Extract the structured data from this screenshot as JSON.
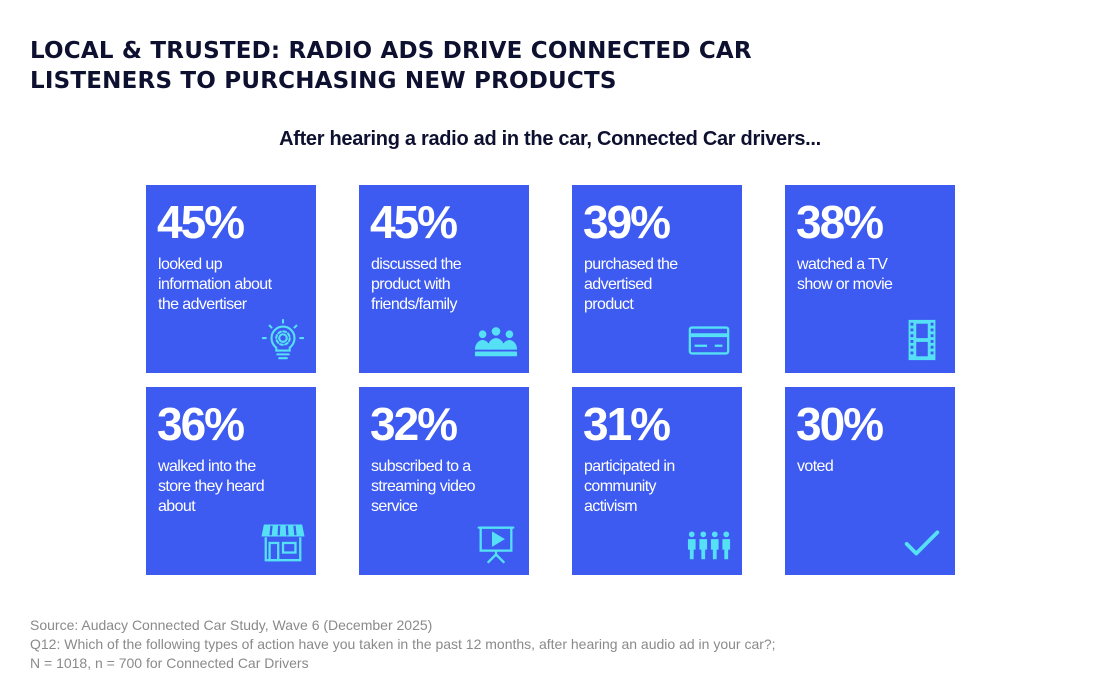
{
  "title_lines": [
    "LOCAL & TRUSTED: RADIO ADS DRIVE CONNECTED CAR",
    "LISTENERS TO PURCHASING NEW PRODUCTS"
  ],
  "subtitle": "After hearing a radio ad in the car, Connected Car drivers...",
  "colors": {
    "card": "#3d5af1",
    "icon": "#55e0f5",
    "title": "#0e1030",
    "source": "#8a8a8a"
  },
  "chart_data": {
    "type": "table",
    "title": "LOCAL & TRUSTED: RADIO ADS DRIVE CONNECTED CAR LISTENERS TO PURCHASING NEW PRODUCTS",
    "subtitle": "After hearing a radio ad in the car, Connected Car drivers...",
    "items": [
      {
        "value": "45%",
        "lines": [
          "looked up",
          "information about",
          "the advertiser"
        ],
        "icon": "lightbulb-icon"
      },
      {
        "value": "45%",
        "lines": [
          "discussed the",
          "product with",
          "friends/family"
        ],
        "icon": "group-icon"
      },
      {
        "value": "39%",
        "lines": [
          "purchased the",
          "advertised",
          "product"
        ],
        "icon": "credit-card-icon"
      },
      {
        "value": "38%",
        "lines": [
          "watched a TV",
          "show or movie"
        ],
        "icon": "film-strip-icon"
      },
      {
        "value": "36%",
        "lines": [
          "walked into the",
          "store they heard",
          "about"
        ],
        "icon": "storefront-icon"
      },
      {
        "value": "32%",
        "lines": [
          "subscribed to a",
          "streaming video",
          "service"
        ],
        "icon": "video-screen-icon"
      },
      {
        "value": "31%",
        "lines": [
          "participated in",
          "community",
          "activism"
        ],
        "icon": "people-row-icon"
      },
      {
        "value": "30%",
        "lines": [
          "voted"
        ],
        "icon": "checkmark-icon"
      }
    ]
  },
  "source_lines": [
    "Source: Audacy Connected Car Study, Wave 6 (December 2025)",
    "Q12: Which of the following types of action have you taken in the past 12 months, after hearing an audio ad in your car?;",
    "N = 1018, n = 700 for Connected Car Drivers"
  ]
}
